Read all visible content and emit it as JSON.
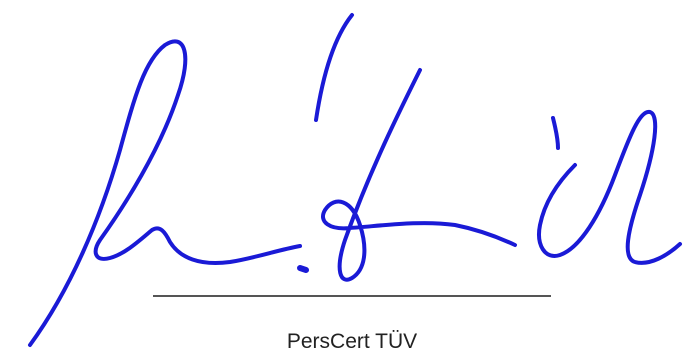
{
  "signature": {
    "caption": "PersCert TÜV",
    "ink_color": "#1a1ad6",
    "line_color": "#555555",
    "text_color": "#222222"
  }
}
